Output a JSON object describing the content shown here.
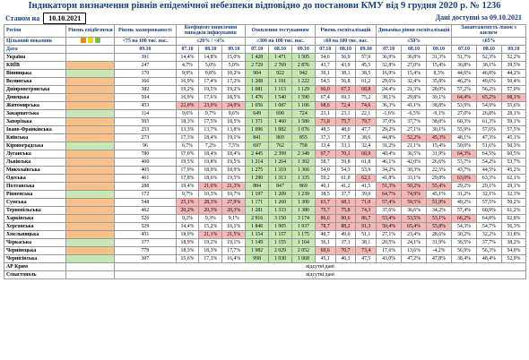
{
  "title": "Індикатори визначення рівнів епідемічної небезпеки відповідно до постанови КМУ від 9 грудня 2020 р. № 1236",
  "as_of_label": "Станом на",
  "as_of_date": "10.10.2021",
  "data_available": "Дані доступні за 09.10.2021",
  "headers": {
    "region": "Регіон",
    "target": "Цільовий показник",
    "date": "Дата",
    "level": "Рівень епідбезпеки",
    "incidence": "Рівень захворюваності",
    "incidence_target": "<75 на 100 тис. нас.",
    "detect": "Коефіцієнт виявлення випадків інфікування",
    "detect_target": "≤20% / <4%",
    "testing": "Охоплення тестуванням",
    "testing_target": "≥300 на 100 тис. нас.",
    "hosp": "Рівень госпіталізацій",
    "hosp_target": "≤60 на 100 тис. нас.",
    "dyn": "Динаміка рівня госпіталізацій",
    "dyn_target": "≤50%",
    "oxy": "Завантаженість ліжок з киснем",
    "oxy_target": "≤65%",
    "date_single": "09.10",
    "dates": [
      "07.10",
      "08.10",
      "09.10"
    ]
  },
  "dot_colors": [
    "#f08a00",
    "#e6d800",
    "#79c142"
  ],
  "colors": {
    "orange": "#f9c18a",
    "green": "#c6e8b1",
    "red": "#f6b7b7",
    "header": "#1c3f7a"
  },
  "rows": [
    {
      "name": "Україна",
      "level": "",
      "vals": [
        "391",
        "14,4%",
        "14,8%",
        "15,0%",
        "1 428",
        "1 471",
        "1 505",
        "54,6",
        "56,9",
        "57,9",
        "36,9%",
        "36,8%",
        "31,3%",
        "51,7%",
        "52,3%",
        "52,2%"
      ]
    },
    {
      "name": "КИЇВ",
      "level": "orange",
      "vals": [
        "247",
        "4,7%",
        "5,0%",
        "5,0%",
        "2 729",
        "2 769",
        "2 876",
        "43,7",
        "43,9",
        "45,5",
        "32,8%",
        "27,0%",
        "15,4%",
        "36,8%",
        "38,1%",
        "39,5%"
      ]
    },
    {
      "name": "Вінницька",
      "level": "green",
      "vals": [
        "170",
        "9,9%",
        "9,8%",
        "10,2%",
        "904",
        "922",
        "942",
        "39,1",
        "38,1",
        "38,5",
        "16,9%",
        "15,4%",
        "8,3%",
        "44,6%",
        "46,8%",
        "44,2%"
      ]
    },
    {
      "name": "Волинська",
      "level": "orange",
      "vals": [
        "366",
        "16,9%",
        "17,4%",
        "17,2%",
        "1 208",
        "1 191",
        "1 222",
        "54,5",
        "56,8",
        "61,2",
        "29,6%",
        "32,4%",
        "35,8%",
        "46,2%",
        "49,6%",
        "50,4%"
      ]
    },
    {
      "name": "Дніпропетровська",
      "level": "orange",
      "vals": [
        "382",
        "19,2%",
        "19,5%",
        "19,2%",
        "1 081",
        "1 113",
        "1 129",
        "66,0",
        "67,3",
        "68,8",
        "24,4%",
        "21,3%",
        "20,0%",
        "57,2%",
        "56,2%",
        "57,0%"
      ]
    },
    {
      "name": "Донецька",
      "level": "orange",
      "vals": [
        "504",
        "16,9%",
        "17,6%",
        "18,5%",
        "1 476",
        "1 540",
        "1 590",
        "67,4",
        "69,1",
        "75,2",
        "38,1%",
        "29,8%",
        "39,1%",
        "64,4%",
        "65,2%",
        "68,1%"
      ]
    },
    {
      "name": "Житомирська",
      "level": "orange",
      "vals": [
        "453",
        "22,0%",
        "23,0%",
        "24,0%",
        "1 056",
        "1 087",
        "1 106",
        "68,6",
        "72,4",
        "74,6",
        "36,3%",
        "41,1%",
        "38,8%",
        "53,9%",
        "54,9%",
        "55,6%"
      ]
    },
    {
      "name": "Закарпатська",
      "level": "green",
      "vals": [
        "114",
        "9,6%",
        "9,7%",
        "9,6%",
        "649",
        "690",
        "724",
        "23,1",
        "23,1",
        "22,1",
        "-1,6%",
        "-6,5%",
        "-9,1%",
        "27,0%",
        "26,8%",
        "28,1%"
      ]
    },
    {
      "name": "Запорізька",
      "level": "orange",
      "vals": [
        "505",
        "18,3%",
        "17,5%",
        "18,5%",
        "1 371",
        "1 460",
        "1 580",
        "71,8",
        "75,7",
        "79,7",
        "37,0%",
        "37,7%",
        "38,0%",
        "60,3%",
        "61,3%",
        "59,1%"
      ]
    },
    {
      "name": "Івано-Франківська",
      "level": "orange",
      "vals": [
        "253",
        "13,3%",
        "13,7%",
        "13,8%",
        "1 096",
        "1 082",
        "1 076",
        "48,5",
        "48,0",
        "47,7",
        "29,2%",
        "27,1%",
        "30,1%",
        "55,9%",
        "57,6%",
        "57,5%"
      ]
    },
    {
      "name": "Київська",
      "level": "orange",
      "vals": [
        "273",
        "17,3%",
        "18,4%",
        "19,1%",
        "841",
        "869",
        "855",
        "37,3",
        "37,8",
        "38,6",
        "44,8%",
        "52,2%",
        "45,3%",
        "48,1%",
        "47,3%",
        "45,1%"
      ]
    },
    {
      "name": "Кіровоградська",
      "level": "green",
      "vals": [
        "96",
        "6,7%",
        "7,2%",
        "7,5%",
        "697",
        "762",
        "758",
        "33,4",
        "33,1",
        "32,4",
        "31,2%",
        "21,1%",
        "15,4%",
        "50,0%",
        "51,6%",
        "50,3%"
      ]
    },
    {
      "name": "Луганська",
      "level": "orange",
      "vals": [
        "780",
        "17,0%",
        "18,4%",
        "18,4%",
        "2 445",
        "2 399",
        "2 348",
        "67,7",
        "70,1",
        "68,9",
        "40,4%",
        "36,5%",
        "31,9%",
        "64,3%",
        "64,5%",
        "60,5%"
      ]
    },
    {
      "name": "Львівська",
      "level": "orange",
      "vals": [
        "400",
        "19,5%",
        "19,8%",
        "19,5%",
        "1 214",
        "1 264",
        "1 302",
        "58,7",
        "59,8",
        "61,8",
        "46,1%",
        "42,0%",
        "26,6%",
        "53,7%",
        "54,2%",
        "53,7%"
      ]
    },
    {
      "name": "Миколаївська",
      "level": "orange",
      "vals": [
        "405",
        "17,9%",
        "18,9%",
        "18,9%",
        "1 275",
        "1 319",
        "1 366",
        "54,0",
        "54,3",
        "53,9",
        "34,2%",
        "30,3%",
        "22,5%",
        "43,7%",
        "44,5%",
        "45,2%"
      ]
    },
    {
      "name": "Одеська",
      "level": "orange",
      "vals": [
        "461",
        "17,8%",
        "18,6%",
        "19,5%",
        "1 290",
        "1 313",
        "1 335",
        "59,2",
        "61,0",
        "62,1",
        "41,8%",
        "33,1%",
        "29,8%",
        "63,0%",
        "63,3%",
        "62,1%"
      ]
    },
    {
      "name": "Полтавська",
      "level": "orange",
      "vals": [
        "288",
        "19,4%",
        "21,0%",
        "21,3%",
        "884",
        "847",
        "869",
        "40,1",
        "41,2",
        "41,5",
        "51,3%",
        "50,2%",
        "55,4%",
        "29,2%",
        "29,1%",
        "29,1%"
      ]
    },
    {
      "name": "Рівненська",
      "level": "green",
      "vals": [
        "172",
        "9,7%",
        "10,3%",
        "10,7%",
        "1 197",
        "1 209",
        "1 239",
        "38,5",
        "37,7",
        "39,0",
        "64,7%",
        "74,9%",
        "45,1%",
        "31,2%",
        "32,1%",
        "32,3%"
      ]
    },
    {
      "name": "Сумська",
      "level": "orange",
      "vals": [
        "548",
        "25,1%",
        "28,3%",
        "27,9%",
        "1 171",
        "1 260",
        "1 300",
        "63,7",
        "68,1",
        "71,0",
        "57,4%",
        "59,5%",
        "51,9%",
        "49,2%",
        "57,5%",
        "50,2%"
      ]
    },
    {
      "name": "Тернопільська",
      "level": "orange",
      "vals": [
        "462",
        "20,2%",
        "20,3%",
        "20,3%",
        "1 281",
        "1 333",
        "1 380",
        "75,7",
        "75,8",
        "74,3",
        "37,6%",
        "36,6%",
        "34,2%",
        "57,4%",
        "60,9%",
        "61,2%"
      ]
    },
    {
      "name": "Харківська",
      "level": "orange",
      "vals": [
        "526",
        "9,2%",
        "9,3%",
        "9,1%",
        "2 916",
        "3 150",
        "3 174",
        "86,6",
        "90,6",
        "86,7",
        "53,4%",
        "53,5%",
        "53,1%",
        "66,2%",
        "64,8%",
        "62,8%"
      ]
    },
    {
      "name": "Херсонська",
      "level": "orange",
      "vals": [
        "529",
        "14,4%",
        "15,2%",
        "16,1%",
        "1 846",
        "1 905",
        "1 937",
        "78,7",
        "88,2",
        "91,3",
        "50,4%",
        "65,4%",
        "55,8%",
        "54,3%",
        "54,7%",
        "56,3%"
      ]
    },
    {
      "name": "Хмельницька",
      "level": "orange",
      "vals": [
        "451",
        "18,9%",
        "21,1%",
        "21,5%",
        "1 154",
        "1 157",
        "1 175",
        "48,7",
        "49,0",
        "51,1",
        "27,1%",
        "23,4%",
        "28,6%",
        "30,2%",
        "32,2%",
        "33,8%"
      ]
    },
    {
      "name": "Черкаська",
      "level": "green",
      "vals": [
        "377",
        "18,9%",
        "19,2%",
        "19,1%",
        "1 149",
        "1 155",
        "1 164",
        "36,1",
        "37,1",
        "38,1",
        "20,5%",
        "24,1%",
        "31,9%",
        "36,5%",
        "37,7%",
        "38,2%"
      ]
    },
    {
      "name": "Чернівецька",
      "level": "orange",
      "vals": [
        "779",
        "18,3%",
        "18,3%",
        "17,7%",
        "1 982",
        "2 029",
        "2 052",
        "69,6",
        "70,7",
        "73,4",
        "17,6%",
        "13,6%",
        "-4,2%",
        "56,9%",
        "56,3%",
        "54,0%"
      ]
    },
    {
      "name": "Чернігівська",
      "level": "green",
      "vals": [
        "307",
        "15,6%",
        "17,3%",
        "16,4%",
        "998",
        "1 030",
        "1 068",
        "45,1",
        "46,3",
        "47,5",
        "43,0%",
        "47,2%",
        "47,8%",
        "38,4%",
        "48,4%",
        "52,0%"
      ]
    },
    {
      "name": "АР Крим",
      "level": "",
      "na": "відсутні дані"
    },
    {
      "name": "Севастополь",
      "level": "",
      "na": "відсутні дані"
    }
  ],
  "highlights": {
    "5": {
      "13": "red",
      "14": "red",
      "15": "red"
    },
    "4": {
      "7": "red",
      "8": "red",
      "9": "red"
    },
    "6": {
      "1": "red",
      "2": "red",
      "3": "red",
      "7": "red",
      "8": "red",
      "9": "red"
    },
    "8": {
      "7": "red",
      "8": "red",
      "9": "red"
    },
    "10": {
      "11": "red",
      "12": "red"
    },
    "12": {
      "7": "red",
      "8": "red",
      "9": "red",
      "13": "red"
    },
    "14": {},
    "15": {
      "9": "red",
      "13": "red"
    },
    "16": {
      "2": "red",
      "3": "red",
      "10": "red",
      "11": "red",
      "12": "red"
    },
    "17": {
      "10": "red",
      "11": "red"
    },
    "18": {
      "1": "red",
      "2": "red",
      "3": "red",
      "7": "red",
      "8": "red",
      "9": "red",
      "10": "red",
      "11": "red",
      "12": "red"
    },
    "19": {
      "1": "red",
      "2": "red",
      "3": "red",
      "7": "red",
      "8": "red",
      "9": "red"
    },
    "20": {
      "7": "red",
      "8": "red",
      "9": "red",
      "10": "red",
      "11": "red",
      "12": "red",
      "13": "red"
    },
    "21": {
      "7": "red",
      "8": "red",
      "9": "red",
      "10": "red",
      "11": "red",
      "12": "red"
    },
    "22": {
      "2": "red",
      "3": "red"
    },
    "24": {
      "7": "red",
      "8": "red",
      "9": "red"
    }
  }
}
